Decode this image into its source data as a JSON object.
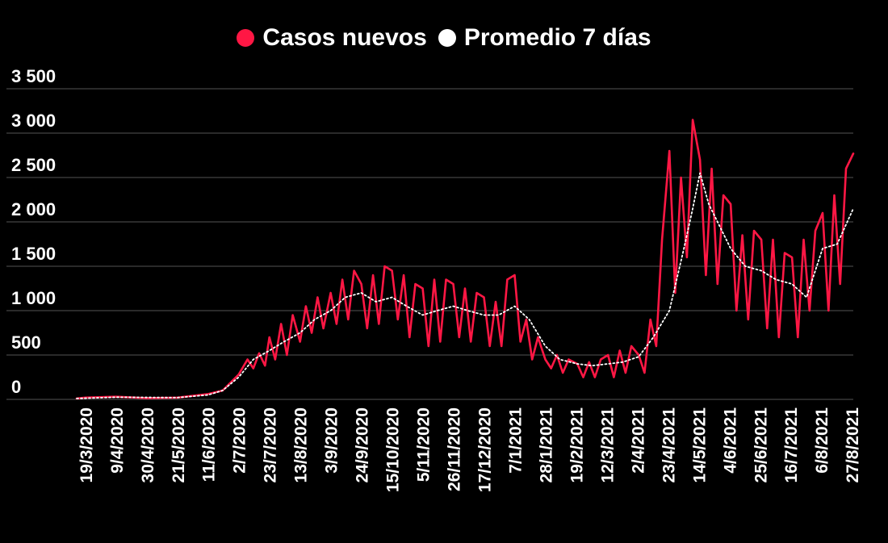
{
  "legend": [
    {
      "label": "Casos nuevos",
      "color": "#ff1744"
    },
    {
      "label": "Promedio 7 días",
      "color": "#ffffff"
    }
  ],
  "chart_data": {
    "type": "line",
    "title": "",
    "xlabel": "",
    "ylabel": "",
    "ylim": [
      0,
      3500
    ],
    "y_ticks": [
      0,
      500,
      1000,
      1500,
      2000,
      2500,
      3000,
      3500
    ],
    "y_tick_labels": [
      "0",
      "500",
      "1 000",
      "1 500",
      "2 000",
      "2 500",
      "3 000",
      "3 500"
    ],
    "x_tick_labels": [
      "19/3/2020",
      "9/4/2020",
      "30/4/2020",
      "21/5/2020",
      "11/6/2020",
      "2/7/2020",
      "23/7/2020",
      "13/8/2020",
      "3/9/2020",
      "24/9/2020",
      "15/10/2020",
      "5/11/2020",
      "26/11/2020",
      "17/12/2020",
      "7/1/2021",
      "28/1/2021",
      "19/2/2021",
      "12/3/2021",
      "2/4/2021",
      "23/4/2021",
      "14/5/2021",
      "4/6/2021",
      "25/6/2021",
      "16/7/2021",
      "6/8/2021",
      "27/8/2021"
    ],
    "x_start": "2020-03-13",
    "x_end": "2021-08-27",
    "grid": "horizontal",
    "legend_position": "top",
    "series": [
      {
        "name": "Casos nuevos",
        "color": "#ff1744",
        "style": "solid",
        "x": [
          "2020-03-13",
          "2020-03-19",
          "2020-04-09",
          "2020-04-30",
          "2020-05-21",
          "2020-06-11",
          "2020-06-21",
          "2020-07-02",
          "2020-07-08",
          "2020-07-12",
          "2020-07-16",
          "2020-07-20",
          "2020-07-23",
          "2020-07-27",
          "2020-07-31",
          "2020-08-04",
          "2020-08-08",
          "2020-08-13",
          "2020-08-17",
          "2020-08-21",
          "2020-08-25",
          "2020-08-29",
          "2020-09-03",
          "2020-09-07",
          "2020-09-11",
          "2020-09-15",
          "2020-09-19",
          "2020-09-24",
          "2020-09-28",
          "2020-10-02",
          "2020-10-06",
          "2020-10-10",
          "2020-10-15",
          "2020-10-19",
          "2020-10-23",
          "2020-10-27",
          "2020-10-31",
          "2020-11-05",
          "2020-11-09",
          "2020-11-13",
          "2020-11-17",
          "2020-11-21",
          "2020-11-26",
          "2020-11-30",
          "2020-12-04",
          "2020-12-08",
          "2020-12-12",
          "2020-12-17",
          "2020-12-21",
          "2020-12-25",
          "2020-12-29",
          "2021-01-02",
          "2021-01-07",
          "2021-01-11",
          "2021-01-15",
          "2021-01-19",
          "2021-01-23",
          "2021-01-28",
          "2021-02-01",
          "2021-02-05",
          "2021-02-09",
          "2021-02-13",
          "2021-02-19",
          "2021-02-23",
          "2021-02-27",
          "2021-03-03",
          "2021-03-07",
          "2021-03-12",
          "2021-03-16",
          "2021-03-20",
          "2021-03-24",
          "2021-03-28",
          "2021-04-02",
          "2021-04-06",
          "2021-04-10",
          "2021-04-14",
          "2021-04-18",
          "2021-04-23",
          "2021-04-27",
          "2021-05-01",
          "2021-05-05",
          "2021-05-09",
          "2021-05-14",
          "2021-05-18",
          "2021-05-22",
          "2021-05-26",
          "2021-05-30",
          "2021-06-04",
          "2021-06-08",
          "2021-06-12",
          "2021-06-16",
          "2021-06-20",
          "2021-06-25",
          "2021-06-29",
          "2021-07-03",
          "2021-07-07",
          "2021-07-11",
          "2021-07-16",
          "2021-07-20",
          "2021-07-24",
          "2021-07-28",
          "2021-08-01",
          "2021-08-06",
          "2021-08-10",
          "2021-08-14",
          "2021-08-18",
          "2021-08-22",
          "2021-08-27"
        ],
        "values": [
          10,
          20,
          30,
          15,
          20,
          60,
          100,
          280,
          450,
          350,
          520,
          380,
          700,
          450,
          850,
          500,
          950,
          650,
          1050,
          750,
          1150,
          800,
          1200,
          850,
          1350,
          900,
          1450,
          1300,
          800,
          1400,
          850,
          1500,
          1450,
          900,
          1400,
          700,
          1300,
          1250,
          600,
          1350,
          650,
          1350,
          1300,
          700,
          1250,
          650,
          1200,
          1150,
          600,
          1100,
          600,
          1350,
          1400,
          650,
          900,
          450,
          700,
          450,
          350,
          500,
          300,
          450,
          400,
          250,
          420,
          250,
          450,
          500,
          250,
          550,
          300,
          600,
          500,
          300,
          900,
          600,
          1800,
          2800,
          1200,
          2500,
          1600,
          3150,
          2700,
          1400,
          2600,
          1300,
          2300,
          2200,
          1000,
          1850,
          900,
          1900,
          1800,
          800,
          1800,
          700,
          1650,
          1600,
          700,
          1800,
          1000,
          1900,
          2100,
          1000,
          2300,
          1300,
          2600,
          2770
        ]
      },
      {
        "name": "Promedio 7 días",
        "color": "#ffffff",
        "style": "dotted",
        "x": [
          "2020-03-13",
          "2020-04-09",
          "2020-05-21",
          "2020-06-11",
          "2020-06-21",
          "2020-07-02",
          "2020-07-12",
          "2020-07-23",
          "2020-08-02",
          "2020-08-13",
          "2020-08-23",
          "2020-09-03",
          "2020-09-13",
          "2020-09-24",
          "2020-10-04",
          "2020-10-15",
          "2020-10-25",
          "2020-11-05",
          "2020-11-15",
          "2020-11-26",
          "2020-12-06",
          "2020-12-17",
          "2020-12-27",
          "2021-01-07",
          "2021-01-17",
          "2021-01-28",
          "2021-02-07",
          "2021-02-19",
          "2021-03-01",
          "2021-03-12",
          "2021-03-22",
          "2021-04-02",
          "2021-04-12",
          "2021-04-23",
          "2021-05-03",
          "2021-05-09",
          "2021-05-14",
          "2021-05-20",
          "2021-06-04",
          "2021-06-14",
          "2021-06-25",
          "2021-07-05",
          "2021-07-16",
          "2021-07-26",
          "2021-08-06",
          "2021-08-16",
          "2021-08-27"
        ],
        "values": [
          10,
          25,
          20,
          50,
          100,
          250,
          450,
          550,
          650,
          750,
          900,
          1000,
          1150,
          1200,
          1100,
          1150,
          1050,
          950,
          1000,
          1050,
          1000,
          950,
          950,
          1050,
          900,
          600,
          450,
          400,
          380,
          400,
          420,
          480,
          700,
          1000,
          1700,
          2150,
          2550,
          2200,
          1700,
          1500,
          1450,
          1350,
          1300,
          1150,
          1700,
          1750,
          2150
        ]
      }
    ]
  }
}
